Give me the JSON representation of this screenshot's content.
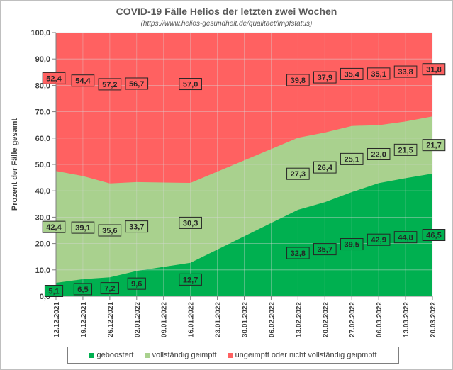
{
  "chart_data": {
    "type": "area",
    "stacked": true,
    "title": "COVID-19 Fälle Helios der letzten zwei Wochen",
    "subtitle": "(https://www.helios-gesundheit.de/qualitaet/impfstatus)",
    "ylabel": "Prozent der Fälle gesamt",
    "xlabel": "",
    "ylim": [
      0,
      100
    ],
    "yticks": [
      "0,0",
      "10,0",
      "20,0",
      "30,0",
      "40,0",
      "50,0",
      "60,0",
      "70,0",
      "80,0",
      "90,0",
      "100,0"
    ],
    "categories": [
      "12.12.2021",
      "19.12.2021",
      "26.12.2021",
      "02.01.2022",
      "09.01.2022",
      "16.01.2022",
      "23.01.2022",
      "30.01.2022",
      "06.02.2022",
      "13.02.2022",
      "20.02.2022",
      "27.02.2022",
      "06.03.2022",
      "13.03.2022",
      "20.03.2022"
    ],
    "series": [
      {
        "name": "geboostert",
        "color": "#00b050",
        "values": [
          5.1,
          6.5,
          7.2,
          9.6,
          null,
          12.7,
          null,
          null,
          null,
          32.8,
          35.7,
          39.5,
          42.9,
          44.8,
          46.5
        ],
        "labels": [
          "5,1",
          "6,5",
          "7,2",
          "9,6",
          "",
          "12,7",
          "",
          "",
          "",
          "32,8",
          "35,7",
          "39,5",
          "42,9",
          "44,8",
          "46,5"
        ]
      },
      {
        "name": "vollständig geimpft",
        "color": "#a9d18e",
        "values": [
          42.4,
          39.1,
          35.6,
          33.7,
          null,
          30.3,
          null,
          null,
          null,
          27.3,
          26.4,
          25.1,
          22.0,
          21.5,
          21.7
        ],
        "labels": [
          "42,4",
          "39,1",
          "35,6",
          "33,7",
          "",
          "30,3",
          "",
          "",
          "",
          "27,3",
          "26,4",
          "25,1",
          "22,0",
          "21,5",
          "21,7"
        ]
      },
      {
        "name": "ungeimpft oder nicht vollständig geipmpft",
        "color": "#ff6161",
        "values": [
          52.4,
          54.4,
          57.2,
          56.7,
          null,
          57.0,
          null,
          null,
          null,
          39.8,
          37.9,
          35.4,
          35.1,
          33.8,
          31.8
        ],
        "labels": [
          "52,4",
          "54,4",
          "57,2",
          "56,7",
          "",
          "57,0",
          "",
          "",
          "",
          "39,8",
          "37,9",
          "35,4",
          "35,1",
          "33,8",
          "31,8"
        ]
      }
    ],
    "legend_position": "bottom"
  }
}
